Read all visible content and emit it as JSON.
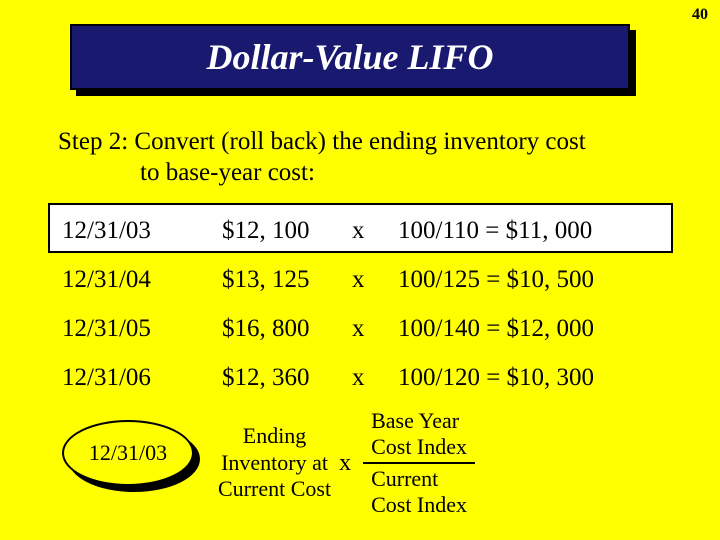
{
  "page_number": "40",
  "title": "Dollar-Value LIFO",
  "step": {
    "line1": "Step 2:  Convert (roll back) the ending inventory cost",
    "line2": "to base-year cost:"
  },
  "table": {
    "rows": [
      {
        "date": "12/31/03",
        "amount": "$12, 100",
        "op": "x",
        "calc": "100/110 = $11, 000"
      },
      {
        "date": "12/31/04",
        "amount": "$13, 125",
        "op": "x",
        "calc": "100/125 = $10, 500"
      },
      {
        "date": "12/31/05",
        "amount": "$16, 800",
        "op": "x",
        "calc": "100/140 = $12, 000"
      },
      {
        "date": "12/31/06",
        "amount": "$12, 360",
        "op": "x",
        "calc": "100/120 = $10, 300"
      }
    ]
  },
  "highlight_row_index": 0,
  "oval_label": "12/31/03",
  "formula": {
    "left_l1": "Ending",
    "left_l2": "Inventory at",
    "left_l3": "Current Cost",
    "op": "x",
    "num_l1": "Base Year",
    "num_l2": "Cost Index",
    "den_l1": "Current",
    "den_l2": "Cost Index"
  },
  "colors": {
    "page_bg": "#ffff00",
    "title_bg": "#191970",
    "title_text": "#ffffff",
    "text": "#000000",
    "highlight_bg": "#ffffff",
    "border": "#000000"
  }
}
